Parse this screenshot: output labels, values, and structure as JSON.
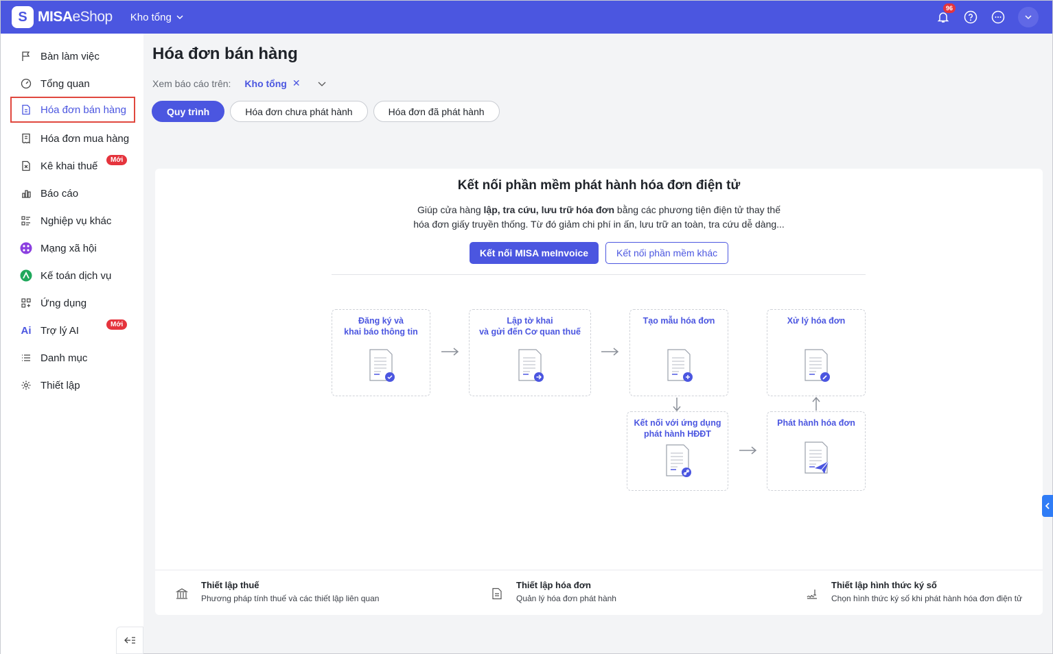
{
  "app": {
    "brand_bold": "MISA",
    "brand_light": "eShop",
    "store": "Kho tổng",
    "notifications": "96"
  },
  "sidebar": {
    "items": [
      {
        "label": "Bàn làm việc"
      },
      {
        "label": "Tổng quan"
      },
      {
        "label": "Hóa đơn bán hàng"
      },
      {
        "label": "Hóa đơn mua hàng"
      },
      {
        "label": "Kê khai thuế",
        "badge": "Mới"
      },
      {
        "label": "Báo cáo"
      },
      {
        "label": "Nghiệp vụ khác"
      },
      {
        "label": "Mạng xã hội"
      },
      {
        "label": "Kế toán dịch vụ"
      },
      {
        "label": "Ứng dụng"
      },
      {
        "label": "Trợ lý AI",
        "badge": "Mới"
      },
      {
        "label": "Danh mục"
      },
      {
        "label": "Thiết lập"
      }
    ]
  },
  "page": {
    "title": "Hóa đơn bán hàng",
    "filter_label": "Xem báo cáo trên:",
    "filter_value": "Kho tổng",
    "tabs": [
      "Quy trình",
      "Hóa đơn chưa phát hành",
      "Hóa đơn đã phát hành"
    ]
  },
  "card": {
    "title": "Kết nối phần mềm phát hành hóa đơn điện tử",
    "desc_1a": "Giúp cửa hàng ",
    "desc_1b": "lập, tra cứu, lưu trữ hóa đơn",
    "desc_1c": " bằng các phương tiện điện tử thay thế",
    "desc_2": "hóa đơn giấy truyền thống. Từ đó giảm chi phí in ấn, lưu trữ an toàn, tra cứu dễ dàng...",
    "btn_primary": "Kết nối MISA meInvoice",
    "btn_secondary": "Kết nối phần mềm khác",
    "steps": [
      "Đăng ký và\nkhai báo thông tin",
      "Lập tờ khai\nvà gửi đến Cơ quan thuế",
      "Tạo mẫu hóa đơn",
      "Xử lý hóa đơn",
      "Kết nối với ứng dụng\nphát hành HĐĐT",
      "Phát hành hóa đơn"
    ]
  },
  "footer": [
    {
      "title": "Thiết lập thuế",
      "sub": "Phương pháp tính thuế và các thiết lập liên quan"
    },
    {
      "title": "Thiết lập hóa đơn",
      "sub": "Quản lý hóa đơn phát hành"
    },
    {
      "title": "Thiết lập hình thức ký số",
      "sub": "Chọn hình thức ký số khi phát hành hóa đơn điện tử"
    }
  ],
  "colors": {
    "brand": "#4b56e0",
    "danger": "#e5343d"
  }
}
